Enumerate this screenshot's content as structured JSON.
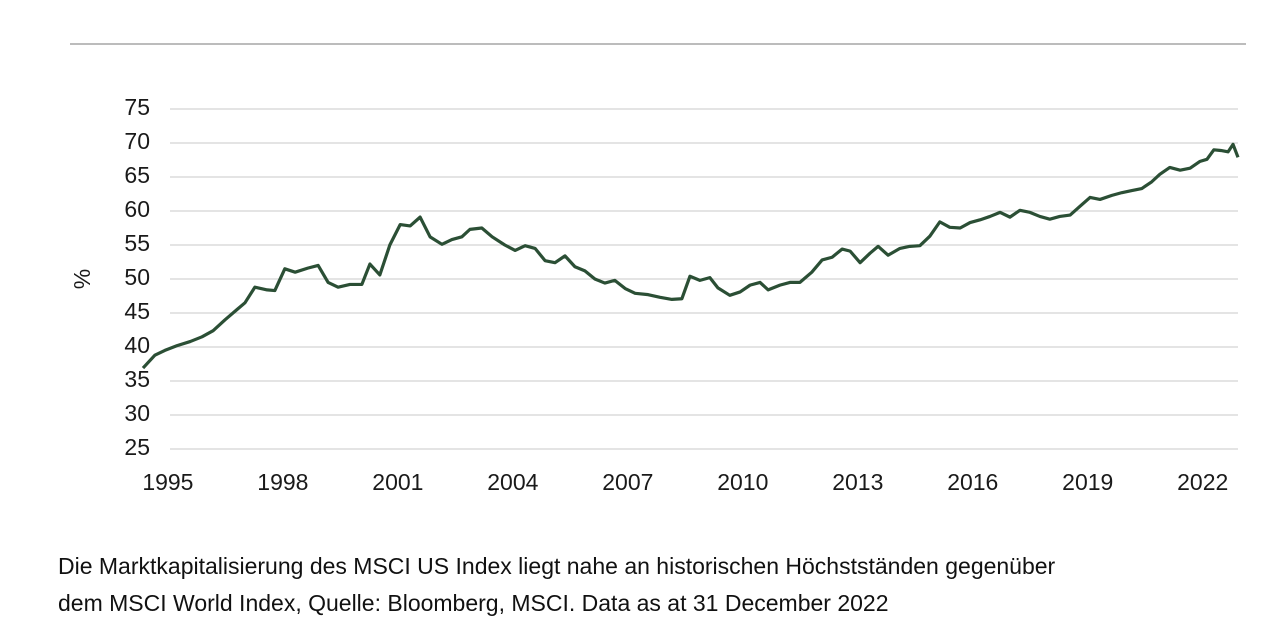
{
  "chart_data": {
    "type": "line",
    "y_label": "%",
    "caption": [
      "Die Marktkapitalisierung des MSCI US Index liegt nahe an historischen Höchstständen gegenüber",
      "dem MSCI World Index, Quelle: Bloomberg, MSCI. Data as at 31 December 2022"
    ],
    "xlim": [
      1994.35,
      2022.92
    ],
    "xticks": [
      1995,
      1998,
      2001,
      2004,
      2007,
      2010,
      2013,
      2016,
      2019,
      2022
    ],
    "ylim": [
      25,
      75
    ],
    "yticks": [
      25,
      30,
      35,
      40,
      45,
      50,
      55,
      60,
      65,
      70,
      75
    ],
    "grid": true,
    "x": [
      1994.35,
      1994.66,
      1994.92,
      1995.24,
      1995.58,
      1995.89,
      1996.18,
      1996.49,
      1996.8,
      1997.01,
      1997.27,
      1997.59,
      1997.79,
      1998.05,
      1998.32,
      1998.65,
      1998.92,
      1999.18,
      1999.44,
      1999.75,
      2000.06,
      2000.27,
      2000.53,
      2000.79,
      2001.06,
      2001.32,
      2001.58,
      2001.84,
      2002.15,
      2002.41,
      2002.67,
      2002.88,
      2003.19,
      2003.46,
      2003.79,
      2004.06,
      2004.32,
      2004.58,
      2004.84,
      2005.1,
      2005.36,
      2005.62,
      2005.88,
      2006.14,
      2006.4,
      2006.66,
      2006.93,
      2007.19,
      2007.53,
      2007.84,
      2008.15,
      2008.41,
      2008.62,
      2008.88,
      2009.14,
      2009.35,
      2009.66,
      2009.93,
      2010.19,
      2010.45,
      2010.66,
      2010.97,
      2011.23,
      2011.49,
      2011.8,
      2012.07,
      2012.33,
      2012.59,
      2012.8,
      2013.06,
      2013.32,
      2013.53,
      2013.79,
      2014.1,
      2014.36,
      2014.62,
      2014.88,
      2015.14,
      2015.4,
      2015.67,
      2015.93,
      2016.19,
      2016.45,
      2016.71,
      2016.97,
      2017.23,
      2017.49,
      2017.75,
      2018.01,
      2018.27,
      2018.54,
      2018.8,
      2019.06,
      2019.32,
      2019.63,
      2019.89,
      2020.15,
      2020.41,
      2020.67,
      2020.88,
      2021.14,
      2021.41,
      2021.67,
      2021.93,
      2022.11,
      2022.29,
      2022.47,
      2022.66,
      2022.79,
      2022.92
    ],
    "series": [
      {
        "color": "#2b4f35",
        "values": [
          36.9,
          38.8,
          39.5,
          40.2,
          40.8,
          41.5,
          42.4,
          44,
          45.5,
          46.5,
          48.8,
          48.4,
          48.3,
          51.5,
          51,
          51.6,
          52,
          49.5,
          48.8,
          49.2,
          49.2,
          52.2,
          50.6,
          55,
          58,
          57.8,
          59.1,
          56.2,
          55.1,
          55.8,
          56.2,
          57.3,
          57.5,
          56.2,
          55,
          54.2,
          54.9,
          54.5,
          52.7,
          52.4,
          53.4,
          51.8,
          51.2,
          50,
          49.4,
          49.8,
          48.6,
          47.9,
          47.7,
          47.3,
          47,
          47.1,
          50.4,
          49.8,
          50.2,
          48.7,
          47.6,
          48.1,
          49.1,
          49.5,
          48.4,
          49.1,
          49.5,
          49.5,
          51,
          52.8,
          53.2,
          54.4,
          54.1,
          52.4,
          53.8,
          54.8,
          53.5,
          54.5,
          54.8,
          54.9,
          56.3,
          58.4,
          57.6,
          57.5,
          58.3,
          58.7,
          59.2,
          59.8,
          59.1,
          60.1,
          59.8,
          59.2,
          58.8,
          59.2,
          59.4,
          60.7,
          62,
          61.7,
          62.3,
          62.7,
          63,
          63.3,
          64.3,
          65.4,
          66.4,
          66,
          66.3,
          67.3,
          67.6,
          69,
          68.9,
          68.7,
          69.8,
          67.9
        ]
      }
    ]
  }
}
